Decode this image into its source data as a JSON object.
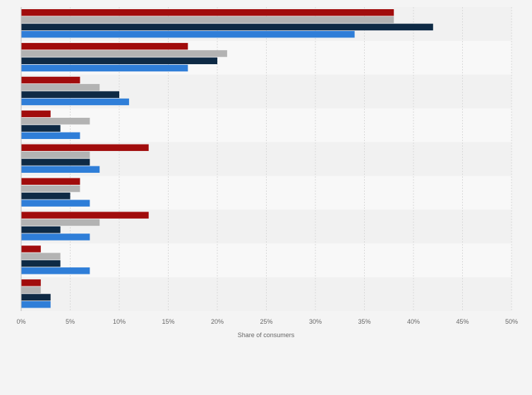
{
  "chart_data": {
    "type": "bar",
    "orientation": "horizontal",
    "categories": [
      "",
      "",
      "",
      "",
      "",
      "",
      "",
      "",
      ""
    ],
    "series": [
      {
        "color": "#a10c0c",
        "values": [
          38,
          17,
          6,
          3,
          13,
          6,
          13,
          2,
          2
        ]
      },
      {
        "color": "#b3b3b3",
        "values": [
          38,
          21,
          8,
          7,
          7,
          6,
          8,
          4,
          2
        ]
      },
      {
        "color": "#0e2a45",
        "values": [
          42,
          20,
          10,
          4,
          7,
          5,
          4,
          4,
          3
        ]
      },
      {
        "color": "#2f7ed8",
        "values": [
          34,
          17,
          11,
          6,
          8,
          7,
          7,
          7,
          3
        ]
      }
    ],
    "x_ticks": [
      "0%",
      "5%",
      "10%",
      "15%",
      "20%",
      "25%",
      "30%",
      "35%",
      "40%",
      "45%",
      "50%"
    ],
    "xlim": [
      0,
      50
    ],
    "xlabel": "Share of consumers",
    "ylabel": "",
    "title": "",
    "grid": true,
    "legend": "none"
  }
}
